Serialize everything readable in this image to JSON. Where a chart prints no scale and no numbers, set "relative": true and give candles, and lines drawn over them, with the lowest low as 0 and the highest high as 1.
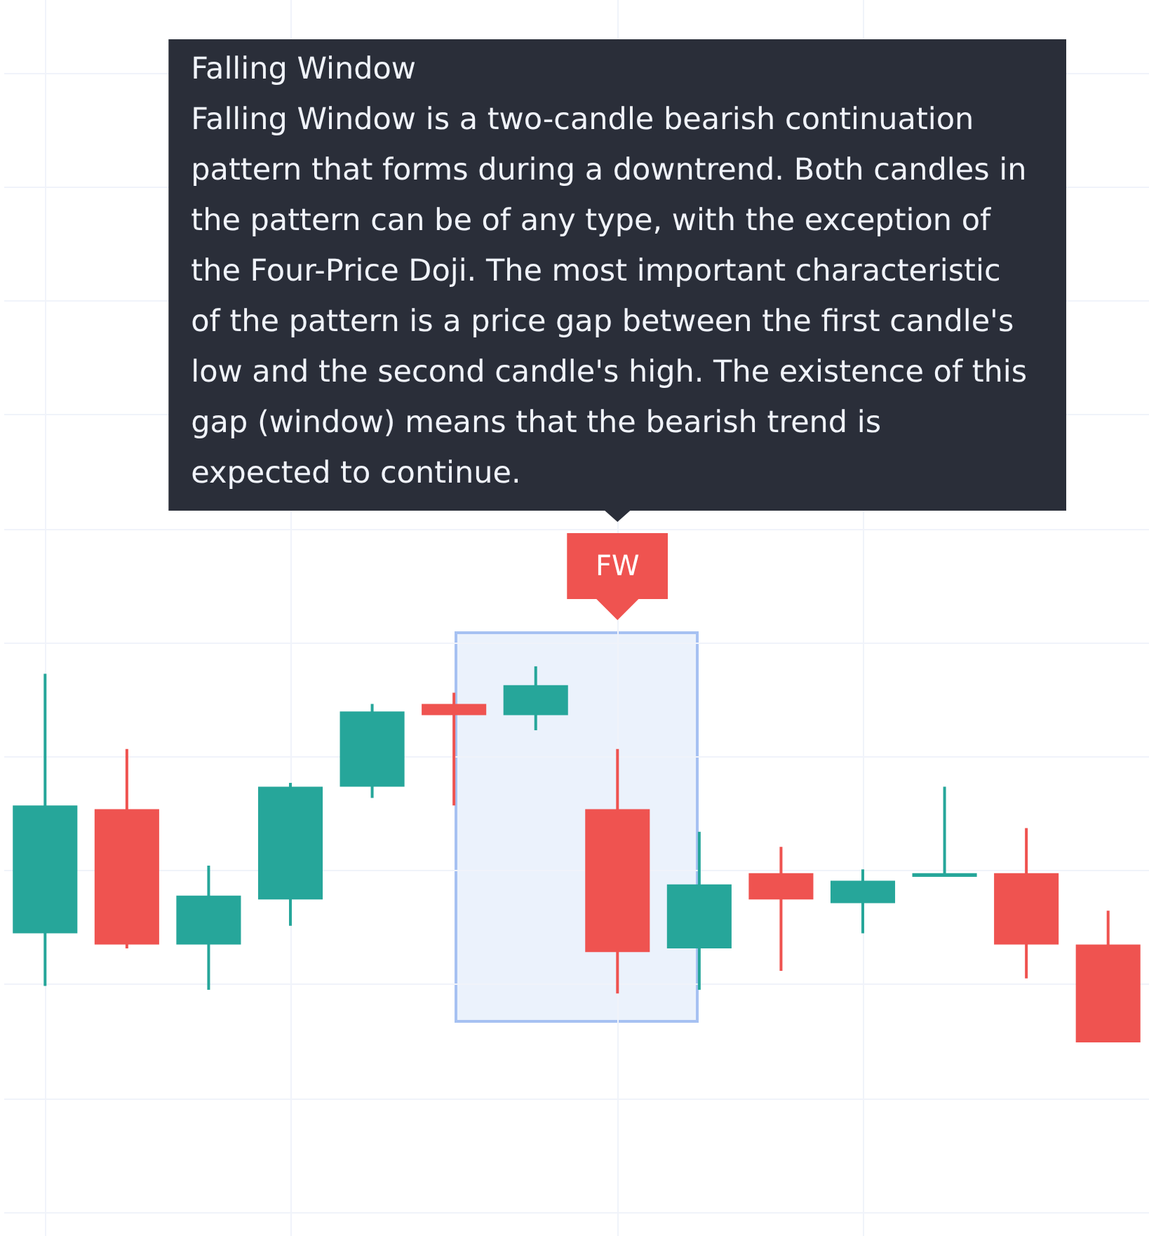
{
  "chart_data": {
    "type": "candlestick",
    "categories": [
      null,
      null,
      null,
      null,
      null,
      null,
      null,
      null,
      null,
      null,
      null,
      null,
      null,
      null
    ],
    "ohlc": [
      [
        0.29,
        0.98,
        0.15,
        0.63
      ],
      [
        0.62,
        0.78,
        0.25,
        0.26
      ],
      [
        0.26,
        0.47,
        0.14,
        0.39
      ],
      [
        0.38,
        0.69,
        0.31,
        0.68
      ],
      [
        0.68,
        0.9,
        0.65,
        0.88
      ],
      [
        0.9,
        0.93,
        0.63,
        0.87
      ],
      [
        0.87,
        1,
        0.83,
        0.95
      ],
      [
        0.62,
        0.78,
        0.13,
        0.24
      ],
      [
        0.25,
        0.56,
        0.14,
        0.42
      ],
      [
        0.45,
        0.52,
        0.19,
        0.38
      ],
      [
        0.37,
        0.46,
        0.29,
        0.43
      ],
      [
        0.44,
        0.68,
        0.44,
        0.45
      ],
      [
        0.45,
        0.57,
        0.17,
        0.26
      ],
      [
        0.26,
        0.35,
        0,
        0
      ]
    ],
    "colors": [
      "#26a69a",
      "#ef5350",
      "#26a69a",
      "#26a69a",
      "#26a69a",
      "#ef5350",
      "#26a69a",
      "#ef5350",
      "#26a69a",
      "#ef5350",
      "#26a69a",
      "#26a69a",
      "#ef5350",
      "#ef5350"
    ],
    "relative": true,
    "grid": true,
    "annotations": [
      "FW",
      "Falling Window",
      "Falling Window is a two-candle bearish continuation pattern that forms during a downtrend. Both candles in the pattern can be of any type, with the exception of the Four-Price Doji. The most important characteristic of the pattern is a price gap between the first candle's low and the second candle's high. The existence of this gap (window) means that the bearish trend is expected to continue."
    ]
  }
}
